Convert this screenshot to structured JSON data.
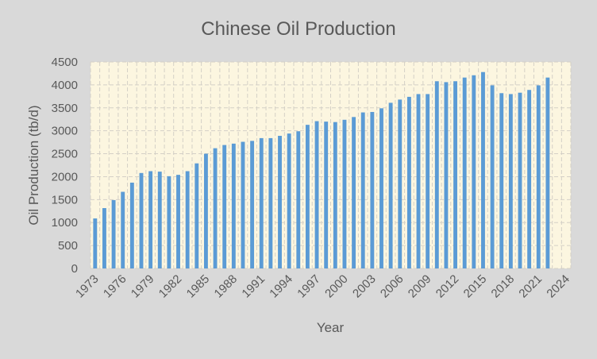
{
  "chart_data": {
    "type": "bar",
    "title": "Chinese Oil Production",
    "xlabel": "Year",
    "ylabel": "Oil Production (tb/d)",
    "ylim": [
      0,
      4500
    ],
    "yticks": [
      "0",
      "500",
      "1000",
      "1500",
      "2000",
      "2500",
      "3000",
      "3500",
      "4000",
      "4500"
    ],
    "xticks": [
      "1973",
      "1976",
      "1979",
      "1982",
      "1985",
      "1988",
      "1991",
      "1994",
      "1997",
      "2000",
      "2003",
      "2006",
      "2009",
      "2012",
      "2015",
      "2018",
      "2021",
      "2024"
    ],
    "grid": true,
    "colors": {
      "bar": "#5b9bd5",
      "plot_bg": "#fcf6e0",
      "page_bg": "#d9d9d9",
      "grid": "#d4d0c6"
    },
    "categories": [
      1973,
      1974,
      1975,
      1976,
      1977,
      1978,
      1979,
      1980,
      1981,
      1982,
      1983,
      1984,
      1985,
      1986,
      1987,
      1988,
      1989,
      1990,
      1991,
      1992,
      1993,
      1994,
      1995,
      1996,
      1997,
      1998,
      1999,
      2000,
      2001,
      2002,
      2003,
      2004,
      2005,
      2006,
      2007,
      2008,
      2009,
      2010,
      2011,
      2012,
      2013,
      2014,
      2015,
      2016,
      2017,
      2018,
      2019,
      2020,
      2021,
      2022,
      2023,
      2024
    ],
    "values": [
      1090,
      1315,
      1490,
      1670,
      1870,
      2080,
      2120,
      2110,
      2010,
      2040,
      2120,
      2290,
      2500,
      2620,
      2690,
      2720,
      2760,
      2780,
      2840,
      2840,
      2890,
      2940,
      2990,
      3130,
      3210,
      3200,
      3190,
      3240,
      3300,
      3400,
      3410,
      3490,
      3610,
      3680,
      3740,
      3800,
      3800,
      4080,
      4060,
      4080,
      4160,
      4210,
      4280,
      3990,
      3820,
      3800,
      3830,
      3890,
      3990,
      4160,
      null,
      null
    ]
  }
}
